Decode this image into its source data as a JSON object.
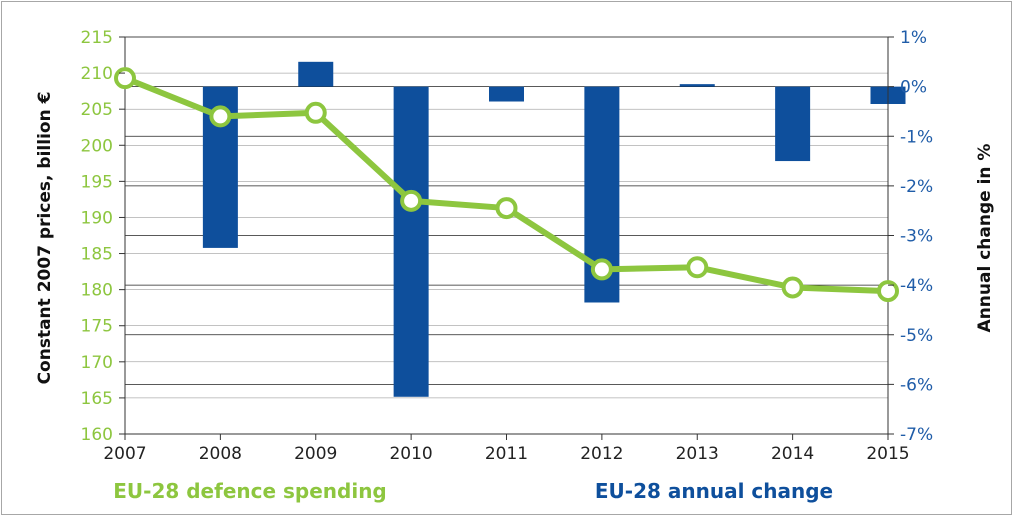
{
  "chart_data": {
    "type": "bar+line",
    "x": [
      "2007",
      "2008",
      "2009",
      "2010",
      "2011",
      "2012",
      "2013",
      "2014",
      "2015"
    ],
    "line_series": {
      "name": "EU-28 defence spending",
      "color": "#8dc63f",
      "values": [
        209.3,
        204.0,
        204.5,
        192.3,
        191.3,
        182.8,
        183.1,
        180.3,
        179.8
      ]
    },
    "bar_series": {
      "name": "EU-28 annual change",
      "color": "#0e4f9c",
      "values": [
        null,
        -3.25,
        0.5,
        -6.25,
        -0.3,
        -4.35,
        0.05,
        -1.5,
        -0.35
      ]
    },
    "y_left": {
      "label": "Constant 2007 prices, billion €",
      "ylim": [
        160,
        215
      ],
      "ticks": [
        "215",
        "210",
        "205",
        "200",
        "195",
        "190",
        "185",
        "180",
        "175",
        "170",
        "165",
        "160"
      ]
    },
    "y_right": {
      "label": "Annual change in %",
      "ylim": [
        -7,
        1
      ],
      "ticks": [
        "1%",
        "0%",
        "-1%",
        "-2%",
        "-3%",
        "-4%",
        "-5%",
        "-6%",
        "-7%"
      ]
    },
    "legend_position": "bottom",
    "gridlines": "horizontal"
  }
}
